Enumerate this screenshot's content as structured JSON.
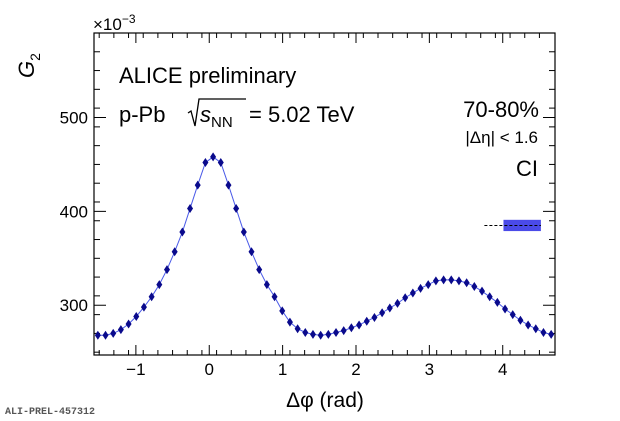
{
  "chart_data": {
    "type": "scatter",
    "xlabel": "Δφ (rad)",
    "ylabel": "G",
    "ylabel_sub": "2",
    "y_multiplier": "×10",
    "y_multiplier_exp": "−3",
    "xlim": [
      -1.5708,
      4.7124
    ],
    "ylim": [
      247,
      590
    ],
    "x_ticks": [
      -1,
      0,
      1,
      2,
      3,
      4
    ],
    "x_tick_labels": [
      "−1",
      "0",
      "1",
      "2",
      "3",
      "4"
    ],
    "y_ticks": [
      300,
      400,
      500
    ],
    "y_tick_labels": [
      "300",
      "400",
      "500"
    ],
    "annotations": {
      "experiment": "ALICE preliminary",
      "system_prefix": "p-Pb",
      "sqrt_s": "s",
      "sqrt_s_sub": "NN",
      "energy": "= 5.02 TeV",
      "centrality": "70-80%",
      "eta_cut": "|Δη| < 1.6",
      "charge_combination": "CI"
    },
    "credit": "ALI-PREL-457312",
    "series": [
      {
        "color": "#0a0a8c",
        "line_color": "#4a5ae8",
        "marker": "diamond",
        "x": [
          -1.5184,
          -1.4137,
          -1.309,
          -1.2043,
          -1.0996,
          -0.9948,
          -0.8901,
          -0.7854,
          -0.6807,
          -0.576,
          -0.4712,
          -0.3665,
          -0.2618,
          -0.1571,
          -0.0524,
          0.0524,
          0.1571,
          0.2618,
          0.3665,
          0.4712,
          0.576,
          0.6807,
          0.7854,
          0.8901,
          0.9948,
          1.0996,
          1.2043,
          1.309,
          1.4137,
          1.5184,
          1.6232,
          1.7279,
          1.8326,
          1.9373,
          2.042,
          2.1468,
          2.2515,
          2.3562,
          2.4609,
          2.5656,
          2.6704,
          2.7751,
          2.8798,
          2.9845,
          3.0892,
          3.194,
          3.2987,
          3.4034,
          3.5081,
          3.6128,
          3.7176,
          3.8223,
          3.927,
          4.0317,
          4.1364,
          4.2412,
          4.3459,
          4.4506,
          4.5553,
          4.66
        ],
        "y": [
          268,
          268,
          270,
          274,
          280,
          288,
          298,
          309,
          322,
          338,
          357,
          378,
          403,
          428,
          452,
          458,
          452,
          428,
          403,
          378,
          357,
          338,
          322,
          309,
          294,
          282,
          275,
          271,
          269,
          268,
          269,
          271,
          273,
          276,
          279,
          283,
          287,
          292,
          297,
          302,
          308,
          313,
          318,
          322,
          326,
          327,
          327,
          326,
          324,
          320,
          315,
          309,
          303,
          296,
          290,
          284,
          279,
          275,
          271,
          269
        ]
      }
    ],
    "systematic_box": {
      "x_range": [
        3.93,
        4.52
      ],
      "y_range": [
        379,
        391
      ],
      "center": 385,
      "color": "#4a4ae8"
    }
  }
}
